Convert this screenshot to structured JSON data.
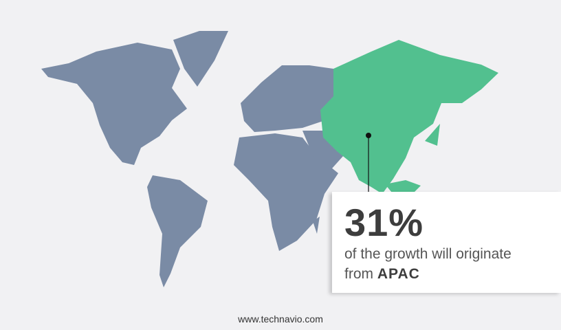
{
  "map": {
    "colors": {
      "background": "#f1f1f3",
      "land": "#7a8ba5",
      "highlight": "#52c08f",
      "marker": "#111111"
    },
    "highlighted_region": "APAC"
  },
  "callout": {
    "percentage": "31%",
    "text": "of the growth will originate",
    "text_prefix": "from",
    "region": "APAC"
  },
  "footer": {
    "url": "www.technavio.com"
  }
}
